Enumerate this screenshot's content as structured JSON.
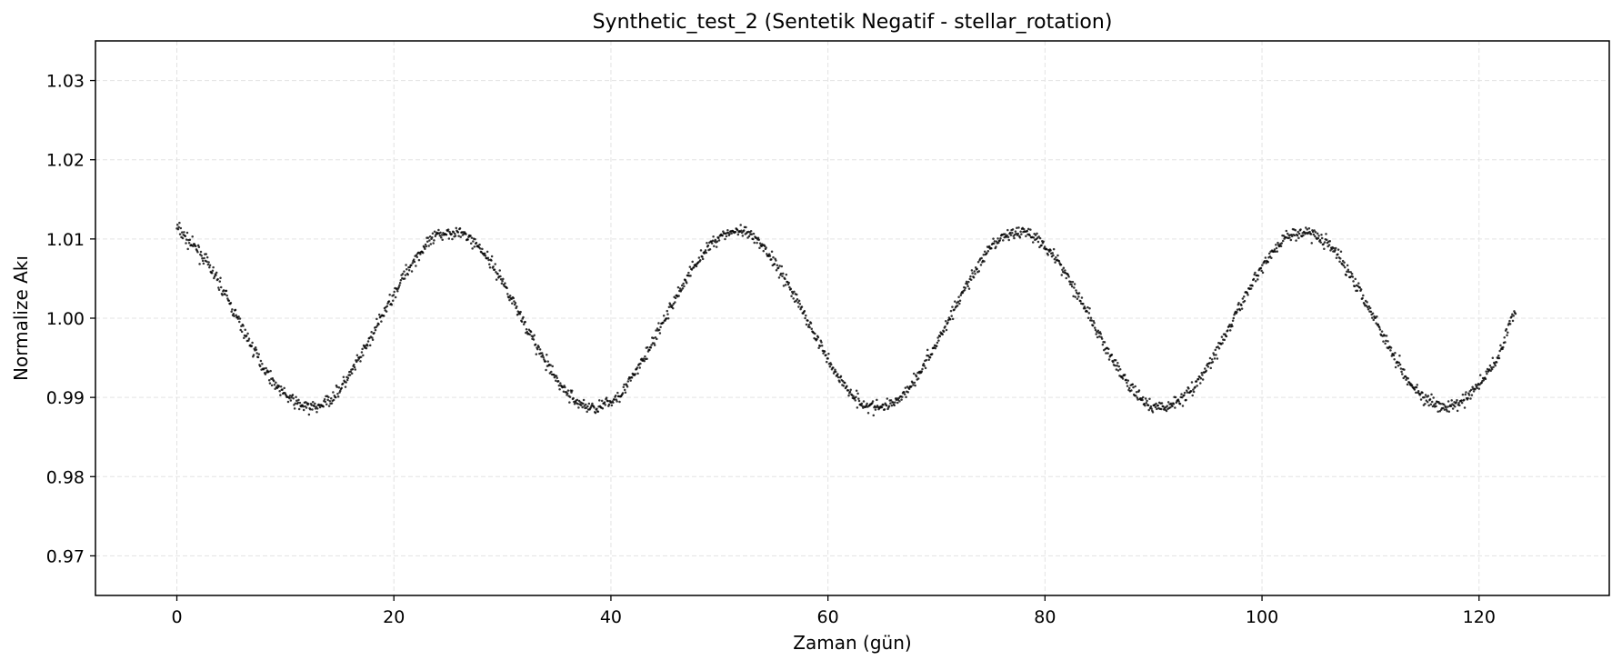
{
  "chart_data": {
    "type": "scatter",
    "title": "Synthetic_test_2 (Sentetik Negatif - stellar_rotation)",
    "xlabel": "Zaman (gün)",
    "ylabel": "Normalize Akı",
    "xlim": [
      -7.5,
      132
    ],
    "ylim": [
      0.965,
      1.035
    ],
    "xticks": [
      0,
      20,
      40,
      60,
      80,
      100,
      120
    ],
    "yticks": [
      0.97,
      0.98,
      0.99,
      1.0,
      1.01,
      1.02,
      1.03
    ],
    "xtick_labels": [
      "0",
      "20",
      "40",
      "60",
      "80",
      "100",
      "120"
    ],
    "ytick_labels": [
      "0.97",
      "0.98",
      "0.99",
      "1.00",
      "1.01",
      "1.02",
      "1.03"
    ],
    "grid": true,
    "marker_color": "#000000",
    "series": [
      {
        "x": [
          0,
          1,
          2,
          3,
          4,
          5,
          6,
          7,
          8,
          9,
          10,
          11,
          12,
          13,
          14,
          15,
          16,
          17,
          18,
          19,
          20,
          21,
          22,
          23,
          24,
          25,
          26,
          27,
          28,
          29,
          30,
          31,
          32,
          33,
          34,
          35,
          36,
          37,
          38,
          39,
          40,
          41,
          42,
          43,
          44,
          45,
          46,
          47,
          48,
          49,
          50,
          51,
          52,
          53,
          54,
          55,
          56,
          57,
          58,
          59,
          60,
          61,
          62,
          63,
          64,
          65,
          66,
          67,
          68,
          69,
          70,
          71,
          72,
          73,
          74,
          75,
          76,
          77,
          78,
          79,
          80,
          81,
          82,
          83,
          84,
          85,
          86,
          87,
          88,
          89,
          90,
          91,
          92,
          93,
          94,
          95,
          96,
          97,
          98,
          99,
          100,
          101,
          102,
          103,
          104,
          105,
          106,
          107,
          108,
          109,
          110,
          111,
          112,
          113,
          114,
          115,
          116,
          117,
          118,
          119,
          120,
          121,
          122,
          123
        ],
        "y": [
          1.0115,
          1.0098,
          1.0085,
          1.0065,
          1.0042,
          1.0015,
          0.9988,
          0.9962,
          0.9938,
          0.9918,
          0.9903,
          0.9893,
          0.9887,
          0.9888,
          0.9896,
          0.991,
          0.9929,
          0.9953,
          0.9978,
          1.0005,
          1.0031,
          1.0055,
          1.0076,
          1.0092,
          1.0104,
          1.0109,
          1.0108,
          1.0101,
          1.0088,
          1.0069,
          1.0047,
          1.0021,
          0.9995,
          0.9968,
          0.9944,
          0.9922,
          0.9905,
          0.9893,
          0.9887,
          0.9888,
          0.9894,
          0.9907,
          0.9925,
          0.9948,
          0.9973,
          1.0,
          1.0026,
          1.0051,
          1.0073,
          1.009,
          1.0103,
          1.0109,
          1.0109,
          1.0103,
          1.009,
          1.0073,
          1.0051,
          1.0026,
          1.0,
          0.9973,
          0.9948,
          0.9925,
          0.9907,
          0.9894,
          0.9888,
          0.9887,
          0.9893,
          0.9905,
          0.9922,
          0.9944,
          0.9968,
          0.9995,
          1.0021,
          1.0047,
          1.0069,
          1.0088,
          1.0101,
          1.0108,
          1.0109,
          1.0104,
          1.0092,
          1.0076,
          1.0055,
          1.0031,
          1.0005,
          0.9978,
          0.9953,
          0.9929,
          0.991,
          0.9896,
          0.9888,
          0.9887,
          0.9893,
          0.9903,
          0.9918,
          0.9938,
          0.9962,
          0.9988,
          1.0015,
          1.0042,
          1.0065,
          1.0085,
          1.0099,
          1.0107,
          1.0109,
          1.0105,
          1.0095,
          1.0079,
          1.0059,
          1.0036,
          1.001,
          0.9983,
          0.9957,
          0.9933,
          0.9913,
          0.9898,
          0.9889,
          0.9887,
          0.9891,
          0.9901,
          0.9916,
          0.9935,
          0.9958,
          1.0005
        ]
      }
    ]
  }
}
